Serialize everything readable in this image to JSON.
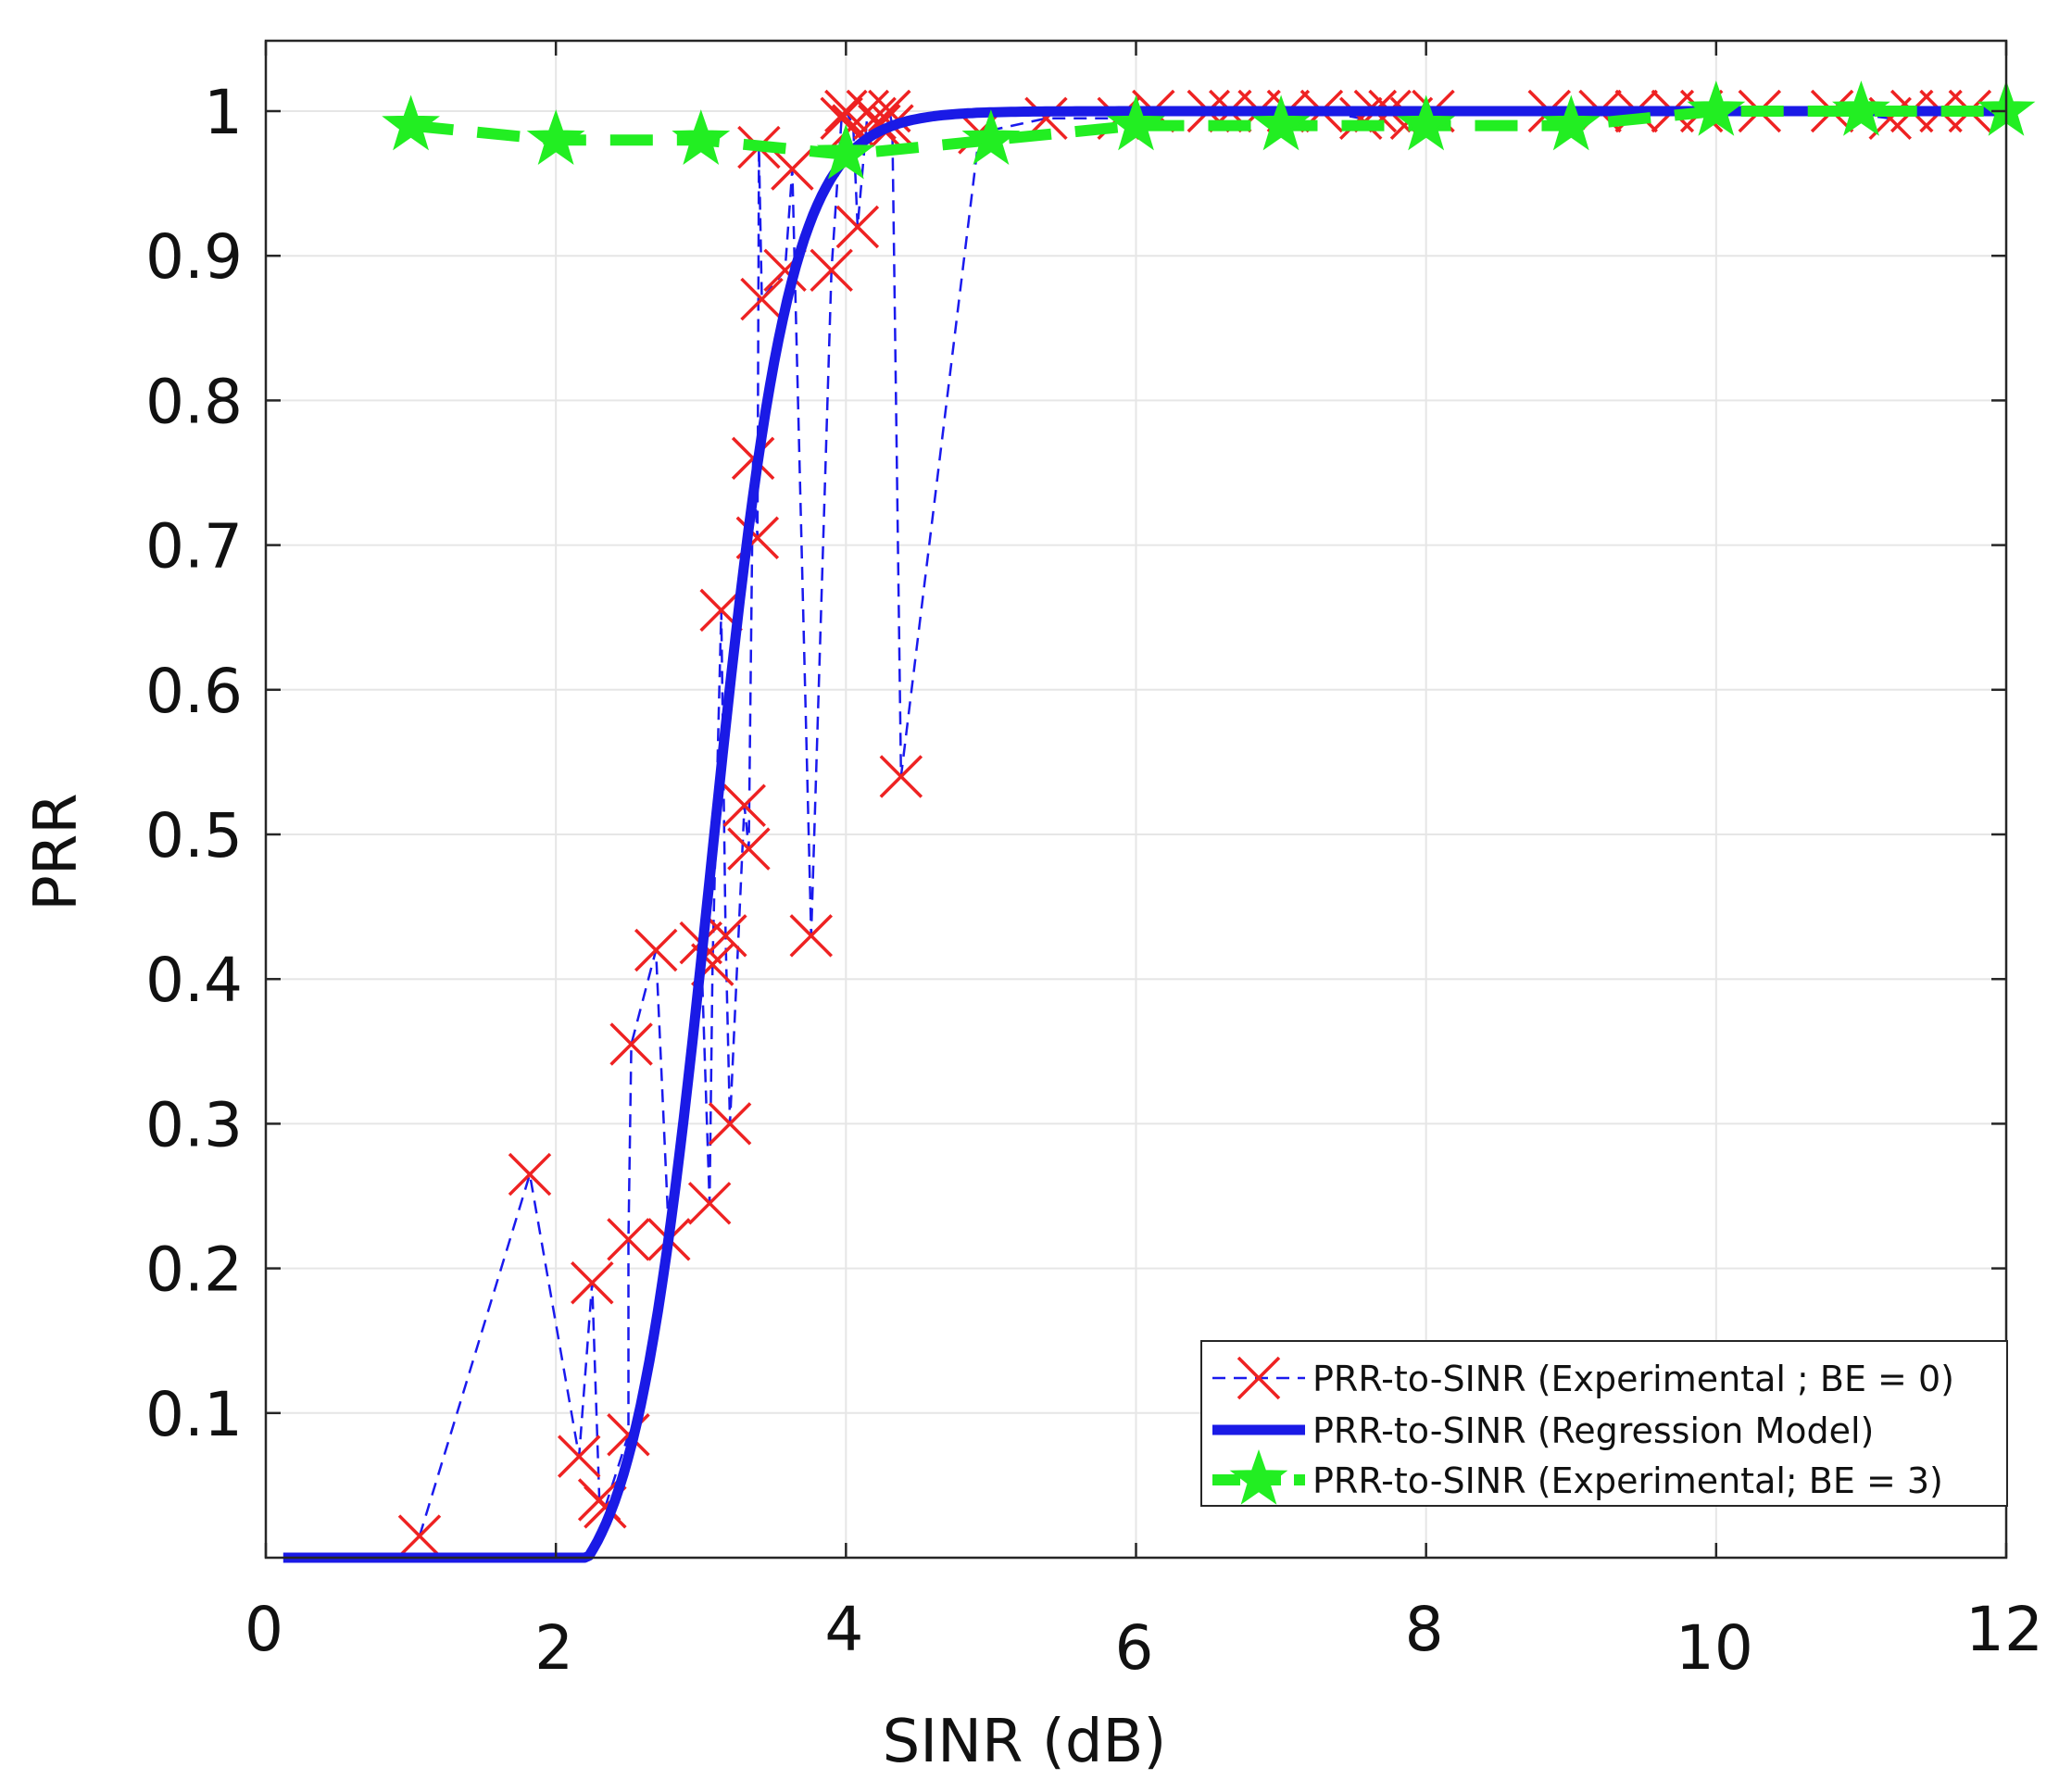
{
  "chart_data": {
    "type": "line",
    "title": "",
    "xlabel": "SINR (dB)",
    "ylabel": "PRR",
    "xlim": [
      0,
      12
    ],
    "ylim": [
      0,
      1.05
    ],
    "grid": true,
    "legend_position": "bottom-right",
    "x_ticks": [
      0,
      2,
      4,
      6,
      8,
      10,
      12
    ],
    "x_tick_labels": [
      "0",
      "2",
      "4",
      "6",
      "8",
      "10",
      "12"
    ],
    "y_ticks": [
      0.1,
      0.2,
      0.3,
      0.4,
      0.5,
      0.6,
      0.7,
      0.8,
      0.9,
      1
    ],
    "y_tick_labels": [
      "0.1",
      "0.2",
      "0.3",
      "0.4",
      "0.5",
      "0.6",
      "0.7",
      "0.8",
      "0.9",
      "1"
    ],
    "series": [
      {
        "name": "PRR-to-SINR (Experimental ; BE = 0)",
        "style": "dashed-x",
        "color": "#1a1aee",
        "marker_color": "#ee2222",
        "points": [
          [
            1.06,
            0.015
          ],
          [
            1.82,
            0.265
          ],
          [
            2.16,
            0.07
          ],
          [
            2.25,
            0.19
          ],
          [
            2.3,
            0.04
          ],
          [
            2.34,
            0.035
          ],
          [
            2.5,
            0.085
          ],
          [
            2.5,
            0.22
          ],
          [
            2.52,
            0.355
          ],
          [
            2.69,
            0.42
          ],
          [
            2.78,
            0.22
          ],
          [
            3.0,
            0.425
          ],
          [
            3.06,
            0.245
          ],
          [
            3.08,
            0.41
          ],
          [
            3.14,
            0.655
          ],
          [
            3.17,
            0.43
          ],
          [
            3.2,
            0.3
          ],
          [
            3.3,
            0.52
          ],
          [
            3.33,
            0.49
          ],
          [
            3.36,
            0.76
          ],
          [
            3.39,
            0.705
          ],
          [
            3.4,
            0.975
          ],
          [
            3.42,
            0.87
          ],
          [
            3.58,
            0.89
          ],
          [
            3.63,
            0.96
          ],
          [
            3.76,
            0.43
          ],
          [
            3.9,
            0.89
          ],
          [
            3.97,
            0.995
          ],
          [
            4.0,
            1.0
          ],
          [
            4.05,
            0.99
          ],
          [
            4.08,
            0.92
          ],
          [
            4.15,
            1.0
          ],
          [
            4.2,
            0.995
          ],
          [
            4.23,
            0.99
          ],
          [
            4.3,
            1.0
          ],
          [
            4.32,
            0.99
          ],
          [
            4.38,
            0.54
          ],
          [
            4.92,
            0.985
          ],
          [
            5.38,
            0.995
          ],
          [
            5.88,
            0.995
          ],
          [
            6.12,
            1.0
          ],
          [
            6.5,
            1.0
          ],
          [
            6.65,
            1.0
          ],
          [
            6.85,
            1.0
          ],
          [
            7.05,
            1.0
          ],
          [
            7.28,
            1.0
          ],
          [
            7.55,
            0.995
          ],
          [
            7.65,
            1.0
          ],
          [
            7.75,
            1.0
          ],
          [
            7.9,
            0.995
          ],
          [
            8.05,
            1.0
          ],
          [
            8.85,
            1.0
          ],
          [
            9.2,
            1.0
          ],
          [
            9.45,
            1.0
          ],
          [
            9.7,
            1.0
          ],
          [
            9.9,
            1.0
          ],
          [
            10.3,
            1.0
          ],
          [
            10.8,
            1.0
          ],
          [
            11.2,
            0.995
          ],
          [
            11.35,
            1.0
          ],
          [
            11.55,
            1.0
          ],
          [
            11.75,
            1.0
          ]
        ]
      },
      {
        "name": "PRR-to-SINR (Regression Model)",
        "style": "solid",
        "color": "#1a1ae6",
        "model": {
          "form": "sigmoid",
          "center": 3.07,
          "scale": 0.27,
          "offset": 2.22
        },
        "x_range": [
          0.12,
          12
        ]
      },
      {
        "name": "PRR-to-SINR (Experimental; BE = 3)",
        "style": "dashed-star",
        "color": "#22ee22",
        "points": [
          [
            1.0,
            0.99
          ],
          [
            2.0,
            0.98
          ],
          [
            3.0,
            0.98
          ],
          [
            4.0,
            0.97
          ],
          [
            5.0,
            0.98
          ],
          [
            6.0,
            0.99
          ],
          [
            7.0,
            0.99
          ],
          [
            8.0,
            0.99
          ],
          [
            9.0,
            0.99
          ],
          [
            10.0,
            1.0
          ],
          [
            11.0,
            1.0
          ],
          [
            12.0,
            1.0
          ]
        ]
      }
    ]
  }
}
